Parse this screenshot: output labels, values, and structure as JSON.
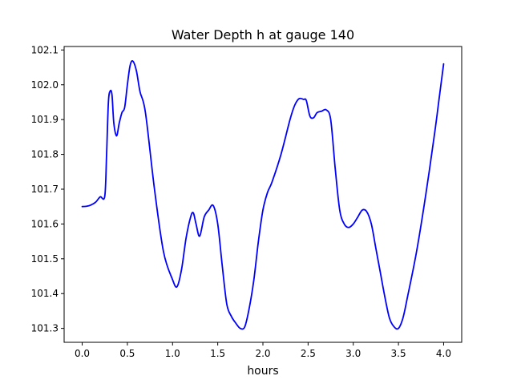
{
  "chart_data": {
    "type": "line",
    "title": "Water Depth h at gauge 140",
    "xlabel": "hours",
    "ylabel": "",
    "xlim": [
      -0.2,
      4.2
    ],
    "ylim": [
      101.26,
      102.11
    ],
    "xticks": [
      0.0,
      0.5,
      1.0,
      1.5,
      2.0,
      2.5,
      3.0,
      3.5,
      4.0
    ],
    "xtick_labels": [
      "0.0",
      "0.5",
      "1.0",
      "1.5",
      "2.0",
      "2.5",
      "3.0",
      "3.5",
      "4.0"
    ],
    "yticks": [
      101.3,
      101.4,
      101.5,
      101.6,
      101.7,
      101.8,
      101.9,
      102.0,
      102.1
    ],
    "ytick_labels": [
      "101.3",
      "101.4",
      "101.5",
      "101.6",
      "101.7",
      "101.8",
      "101.9",
      "102.0",
      "102.1"
    ],
    "grid": false,
    "series": [
      {
        "color": "#0000ff",
        "x": [
          0.0,
          0.05,
          0.1,
          0.15,
          0.2,
          0.25,
          0.27,
          0.29,
          0.31,
          0.33,
          0.35,
          0.38,
          0.41,
          0.44,
          0.47,
          0.5,
          0.53,
          0.56,
          0.6,
          0.64,
          0.7,
          0.8,
          0.9,
          1.0,
          1.05,
          1.1,
          1.15,
          1.2,
          1.23,
          1.26,
          1.3,
          1.35,
          1.4,
          1.45,
          1.5,
          1.55,
          1.6,
          1.65,
          1.7,
          1.75,
          1.8,
          1.85,
          1.9,
          1.95,
          2.0,
          2.05,
          2.1,
          2.2,
          2.3,
          2.35,
          2.4,
          2.45,
          2.48,
          2.52,
          2.56,
          2.6,
          2.65,
          2.7,
          2.75,
          2.8,
          2.85,
          2.9,
          2.95,
          3.0,
          3.05,
          3.1,
          3.15,
          3.2,
          3.25,
          3.3,
          3.35,
          3.4,
          3.45,
          3.5,
          3.55,
          3.6,
          3.7,
          3.8,
          3.9,
          3.95,
          4.0
        ],
        "y": [
          101.65,
          101.651,
          101.655,
          101.663,
          101.678,
          101.68,
          101.8,
          101.95,
          101.982,
          101.97,
          101.89,
          101.853,
          101.89,
          101.92,
          101.935,
          102.0,
          102.055,
          102.068,
          102.04,
          101.98,
          101.92,
          101.7,
          101.52,
          101.44,
          101.42,
          101.47,
          101.56,
          101.62,
          101.632,
          101.6,
          101.565,
          101.62,
          101.64,
          101.653,
          101.6,
          101.48,
          101.37,
          101.335,
          101.315,
          101.3,
          101.305,
          101.36,
          101.44,
          101.55,
          101.64,
          101.69,
          101.72,
          101.8,
          101.9,
          101.94,
          101.96,
          101.958,
          101.955,
          101.91,
          101.905,
          101.92,
          101.924,
          101.928,
          101.9,
          101.76,
          101.64,
          101.6,
          101.59,
          101.6,
          101.62,
          101.64,
          101.635,
          101.6,
          101.53,
          101.46,
          101.39,
          101.33,
          101.305,
          101.3,
          101.33,
          101.39,
          101.52,
          101.68,
          101.86,
          101.96,
          102.06
        ]
      }
    ]
  }
}
